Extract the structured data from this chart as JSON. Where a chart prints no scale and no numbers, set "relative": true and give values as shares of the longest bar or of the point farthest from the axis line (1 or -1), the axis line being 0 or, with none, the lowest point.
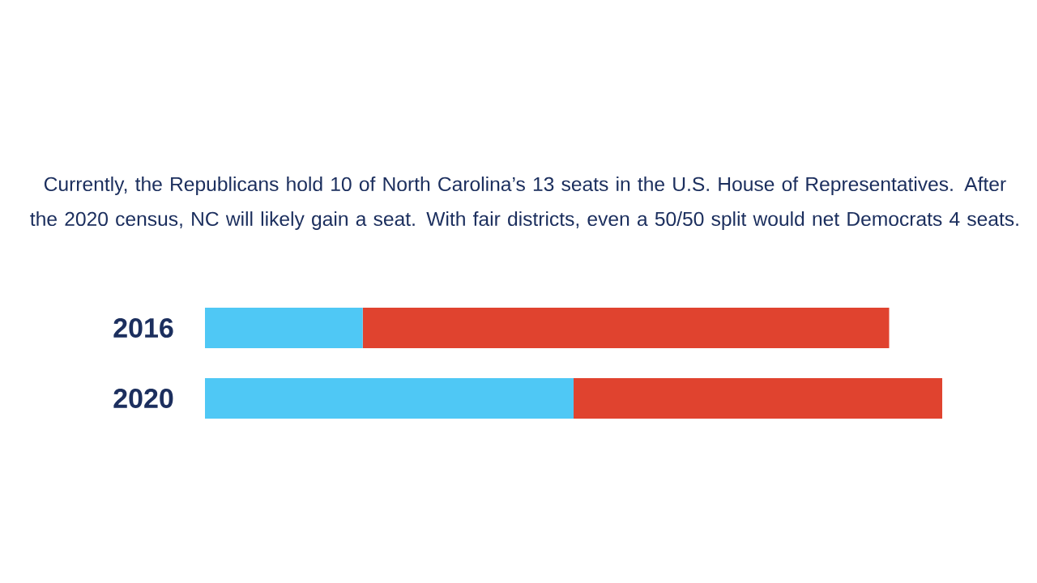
{
  "chart_data": {
    "type": "bar",
    "title": "Currently, the Republicans hold 10 of North Carolina’s 13 seats in the U.S. House of Representatives. After the 2020 census, NC will likely gain a seat. With fair districts, even a 50/50 split would net Democrats 4 seats.",
    "categories": [
      "2016",
      "2020"
    ],
    "series": [
      {
        "color": "#4fc8f5",
        "values": [
          0.214,
          0.5
        ]
      },
      {
        "color": "#e0432f",
        "values": [
          0.714,
          0.5
        ]
      }
    ],
    "stacked": true,
    "orientation": "horizontal",
    "relative": true
  }
}
